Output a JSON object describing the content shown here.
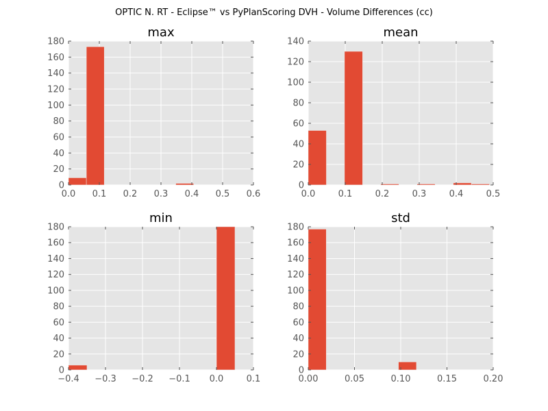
{
  "figure": {
    "suptitle": "OPTIC N. RT - Eclipse™ vs PyPlanScoring DVH - Volume Differences (cc)",
    "colors": {
      "bar": "#E24A33",
      "axes_bg": "#E5E5E5",
      "grid": "#FFFFFF",
      "tick_text": "#555555",
      "title_text": "#000000"
    }
  },
  "chart_data": [
    {
      "type": "bar",
      "title": "max",
      "xlabel": "",
      "ylabel": "",
      "xlim": [
        0.0,
        0.6
      ],
      "ylim": [
        0,
        180
      ],
      "xticks": [
        "0.0",
        "0.1",
        "0.2",
        "0.3",
        "0.4",
        "0.5",
        "0.6"
      ],
      "yticks": [
        "0",
        "20",
        "40",
        "60",
        "80",
        "100",
        "120",
        "140",
        "160",
        "180"
      ],
      "grid": true,
      "bins": [
        {
          "x0": 0.0,
          "x1": 0.058,
          "value": 9
        },
        {
          "x0": 0.058,
          "x1": 0.116,
          "value": 173
        },
        {
          "x0": 0.116,
          "x1": 0.174,
          "value": 0
        },
        {
          "x0": 0.174,
          "x1": 0.232,
          "value": 0
        },
        {
          "x0": 0.232,
          "x1": 0.29,
          "value": 0
        },
        {
          "x0": 0.29,
          "x1": 0.348,
          "value": 0
        },
        {
          "x0": 0.348,
          "x1": 0.406,
          "value": 2
        },
        {
          "x0": 0.406,
          "x1": 0.464,
          "value": 0
        },
        {
          "x0": 0.464,
          "x1": 0.522,
          "value": 0
        },
        {
          "x0": 0.522,
          "x1": 0.58,
          "value": 0
        }
      ]
    },
    {
      "type": "bar",
      "title": "mean",
      "xlabel": "",
      "ylabel": "",
      "xlim": [
        0.0,
        0.5
      ],
      "ylim": [
        0,
        140
      ],
      "xticks": [
        "0.0",
        "0.1",
        "0.2",
        "0.3",
        "0.4",
        "0.5"
      ],
      "yticks": [
        "0",
        "20",
        "40",
        "60",
        "80",
        "100",
        "120",
        "140"
      ],
      "grid": true,
      "bins": [
        {
          "x0": 0.0,
          "x1": 0.049,
          "value": 53
        },
        {
          "x0": 0.049,
          "x1": 0.098,
          "value": 0
        },
        {
          "x0": 0.098,
          "x1": 0.147,
          "value": 130
        },
        {
          "x0": 0.147,
          "x1": 0.196,
          "value": 0
        },
        {
          "x0": 0.196,
          "x1": 0.245,
          "value": 1
        },
        {
          "x0": 0.245,
          "x1": 0.294,
          "value": 0
        },
        {
          "x0": 0.294,
          "x1": 0.343,
          "value": 1
        },
        {
          "x0": 0.343,
          "x1": 0.392,
          "value": 0
        },
        {
          "x0": 0.392,
          "x1": 0.441,
          "value": 2
        },
        {
          "x0": 0.441,
          "x1": 0.49,
          "value": 1
        }
      ]
    },
    {
      "type": "bar",
      "title": "min",
      "xlabel": "",
      "ylabel": "",
      "xlim": [
        -0.4,
        0.1
      ],
      "ylim": [
        0,
        180
      ],
      "xticks": [
        "−0.4",
        "−0.3",
        "−0.2",
        "−0.1",
        "0.0",
        "0.1"
      ],
      "yticks": [
        "0",
        "20",
        "40",
        "60",
        "80",
        "100",
        "120",
        "140",
        "160",
        "180"
      ],
      "grid": true,
      "bins": [
        {
          "x0": -0.4,
          "x1": -0.35,
          "value": 6
        },
        {
          "x0": -0.35,
          "x1": -0.3,
          "value": 0
        },
        {
          "x0": -0.3,
          "x1": -0.25,
          "value": 0
        },
        {
          "x0": -0.25,
          "x1": -0.2,
          "value": 0
        },
        {
          "x0": -0.2,
          "x1": -0.15,
          "value": 0
        },
        {
          "x0": -0.15,
          "x1": -0.1,
          "value": 0
        },
        {
          "x0": -0.1,
          "x1": -0.05,
          "value": 0
        },
        {
          "x0": -0.05,
          "x1": 0.0,
          "value": 0
        },
        {
          "x0": 0.0,
          "x1": 0.05,
          "value": 180
        }
      ]
    },
    {
      "type": "bar",
      "title": "std",
      "xlabel": "",
      "ylabel": "",
      "xlim": [
        0.0,
        0.2
      ],
      "ylim": [
        0,
        180
      ],
      "xticks": [
        "0.00",
        "0.05",
        "0.10",
        "0.15",
        "0.20"
      ],
      "yticks": [
        "0",
        "20",
        "40",
        "60",
        "80",
        "100",
        "120",
        "140",
        "160",
        "180"
      ],
      "grid": true,
      "bins": [
        {
          "x0": 0.0,
          "x1": 0.0195,
          "value": 177
        },
        {
          "x0": 0.0195,
          "x1": 0.039,
          "value": 0
        },
        {
          "x0": 0.039,
          "x1": 0.0585,
          "value": 0
        },
        {
          "x0": 0.0585,
          "x1": 0.078,
          "value": 0
        },
        {
          "x0": 0.078,
          "x1": 0.0975,
          "value": 0
        },
        {
          "x0": 0.0975,
          "x1": 0.117,
          "value": 10
        },
        {
          "x0": 0.117,
          "x1": 0.1365,
          "value": 0
        },
        {
          "x0": 0.1365,
          "x1": 0.156,
          "value": 0
        },
        {
          "x0": 0.156,
          "x1": 0.1755,
          "value": 0
        },
        {
          "x0": 0.1755,
          "x1": 0.195,
          "value": 0
        }
      ]
    }
  ]
}
